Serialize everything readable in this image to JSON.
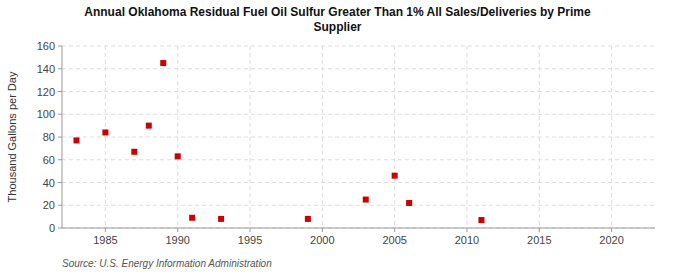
{
  "chart_data": {
    "type": "scatter",
    "title": "Annual Oklahoma Residual Fuel Oil Sulfur Greater Than 1% All Sales/Deliveries by Prime\nSupplier",
    "y_label": "Thousand Gallons per Day",
    "annotations": [
      "Source: U.S. Energy Information Administration"
    ],
    "x": [
      1983,
      1985,
      1987,
      1988,
      1989,
      1990,
      1991,
      1993,
      1999,
      2003,
      2005,
      2006,
      2011
    ],
    "values": [
      77,
      84,
      67,
      90,
      145,
      63,
      9,
      8,
      8,
      25,
      46,
      22,
      7
    ],
    "color": "#cc0000",
    "marker": "square",
    "xlim": [
      1982,
      2023
    ],
    "ylim": [
      0,
      160
    ],
    "xticks": [
      1985,
      1990,
      1995,
      2000,
      2005,
      2010,
      2015,
      2020
    ],
    "yticks": [
      0,
      20,
      40,
      60,
      80,
      100,
      120,
      140,
      160
    ],
    "grid": true
  }
}
